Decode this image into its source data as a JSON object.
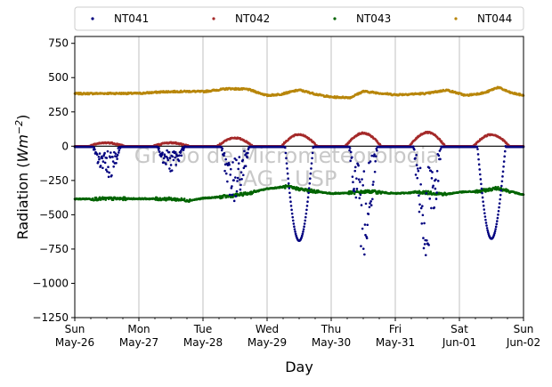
{
  "chart_data": {
    "type": "scatter",
    "xlabel": "Day",
    "ylabel_main": "Radiation (",
    "ylabel_unit": "Wm",
    "ylabel_exp": "−2",
    "ylabel_close": ")",
    "ylim": [
      -1250,
      800
    ],
    "xlim": [
      0,
      7
    ],
    "yticks": [
      {
        "value": 750,
        "label": "750"
      },
      {
        "value": 500,
        "label": "500"
      },
      {
        "value": 250,
        "label": "250"
      },
      {
        "value": 0,
        "label": "0"
      },
      {
        "value": -250,
        "label": "−250"
      },
      {
        "value": -500,
        "label": "−500"
      },
      {
        "value": -750,
        "label": "−750"
      },
      {
        "value": -1000,
        "label": "−1000"
      },
      {
        "value": -1250,
        "label": "−1250"
      }
    ],
    "xticks": [
      {
        "day": 0,
        "line1": "Sun",
        "line2": "May-26"
      },
      {
        "day": 1,
        "line1": "Mon",
        "line2": "May-27"
      },
      {
        "day": 2,
        "line1": "Tue",
        "line2": "May-28"
      },
      {
        "day": 3,
        "line1": "Wed",
        "line2": "May-29"
      },
      {
        "day": 4,
        "line1": "Thu",
        "line2": "May-30"
      },
      {
        "day": 5,
        "line1": "Fri",
        "line2": "May-31"
      },
      {
        "day": 6,
        "line1": "Sat",
        "line2": "Jun-01"
      },
      {
        "day": 7,
        "line1": "Sun",
        "line2": "Jun-02"
      }
    ],
    "grid": "vertical",
    "legend_position": "top",
    "watermark": [
      "Grupo de Micrometeorologia",
      "IAG - USP"
    ],
    "series": [
      {
        "name": "NT041",
        "color": "#00007f",
        "baseline": -5,
        "days": [
          {
            "day": 0,
            "depth": 250,
            "noisy": true
          },
          {
            "day": 1,
            "depth": 190,
            "noisy": true
          },
          {
            "day": 2,
            "depth": 430,
            "noisy": true
          },
          {
            "day": 3,
            "depth": 690,
            "noisy": false
          },
          {
            "day": 4,
            "depth": 800,
            "noisy": true
          },
          {
            "day": 5,
            "depth": 820,
            "noisy": true
          },
          {
            "day": 6,
            "depth": 675,
            "noisy": false
          }
        ]
      },
      {
        "name": "NT042",
        "color": "#a52a2a",
        "baseline": 0,
        "days": [
          {
            "day": 0,
            "peak": 25
          },
          {
            "day": 1,
            "peak": 25
          },
          {
            "day": 2,
            "peak": 60
          },
          {
            "day": 3,
            "peak": 85
          },
          {
            "day": 4,
            "peak": 95
          },
          {
            "day": 5,
            "peak": 100
          },
          {
            "day": 6,
            "peak": 85
          }
        ]
      },
      {
        "name": "NT043",
        "color": "#006400",
        "points": [
          [
            0,
            -385
          ],
          [
            0.5,
            -383
          ],
          [
            1,
            -383
          ],
          [
            1.5,
            -385
          ],
          [
            1.8,
            -395
          ],
          [
            2.0,
            -380
          ],
          [
            2.4,
            -365
          ],
          [
            2.7,
            -345
          ],
          [
            3.0,
            -310
          ],
          [
            3.3,
            -295
          ],
          [
            3.6,
            -320
          ],
          [
            4.0,
            -345
          ],
          [
            4.3,
            -340
          ],
          [
            4.6,
            -330
          ],
          [
            5.0,
            -345
          ],
          [
            5.4,
            -335
          ],
          [
            5.8,
            -350
          ],
          [
            6.0,
            -335
          ],
          [
            6.3,
            -330
          ],
          [
            6.6,
            -305
          ],
          [
            7.0,
            -355
          ]
        ]
      },
      {
        "name": "NT044",
        "color": "#b8860b",
        "points": [
          [
            0,
            383
          ],
          [
            0.5,
            385
          ],
          [
            1,
            385
          ],
          [
            1.4,
            397
          ],
          [
            1.8,
            400
          ],
          [
            2.0,
            398
          ],
          [
            2.4,
            420
          ],
          [
            2.7,
            415
          ],
          [
            3.0,
            370
          ],
          [
            3.2,
            378
          ],
          [
            3.5,
            410
          ],
          [
            3.8,
            375
          ],
          [
            4.0,
            358
          ],
          [
            4.3,
            355
          ],
          [
            4.5,
            400
          ],
          [
            4.8,
            385
          ],
          [
            5.0,
            375
          ],
          [
            5.5,
            385
          ],
          [
            5.8,
            410
          ],
          [
            6.1,
            370
          ],
          [
            6.4,
            390
          ],
          [
            6.6,
            430
          ],
          [
            6.8,
            390
          ],
          [
            7.0,
            370
          ]
        ]
      }
    ]
  }
}
